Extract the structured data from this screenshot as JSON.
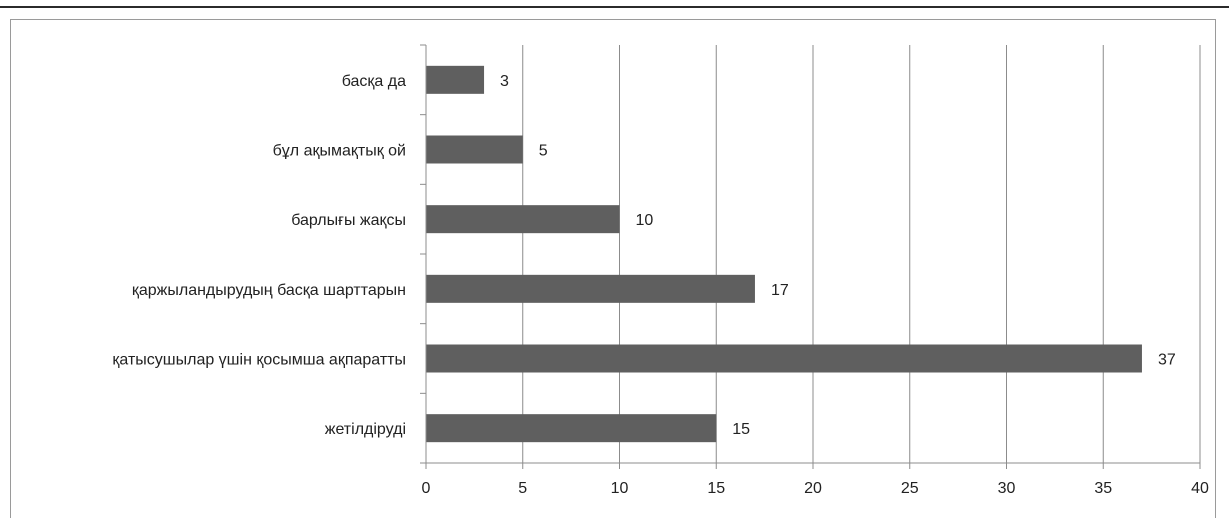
{
  "chart_data": {
    "type": "bar",
    "orientation": "horizontal",
    "categories": [
      "жетілдіруді",
      "қатысушылар үшін қосымша ақпаратты",
      "қаржыландырудың басқа шарттарын",
      "барлығы жақсы",
      "бұл ақымақтық ой",
      "басқа да"
    ],
    "values": [
      15,
      37,
      17,
      10,
      5,
      3
    ],
    "xlim": [
      0,
      40
    ],
    "xticks": [
      0,
      5,
      10,
      15,
      20,
      25,
      30,
      35,
      40
    ],
    "xtick_labels": [
      "0",
      "5",
      "10",
      "15",
      "20",
      "25",
      "30",
      "35",
      "40"
    ],
    "title": "",
    "xlabel": "",
    "ylabel": "",
    "grid": "vertical",
    "data_labels": true,
    "legend": "none",
    "colors": {
      "bar": "#5f5f5f",
      "gridline": "#8c8c8c",
      "axis": "#8c8c8c",
      "text": "#222222",
      "top_rule": "#2b2b2b"
    }
  }
}
